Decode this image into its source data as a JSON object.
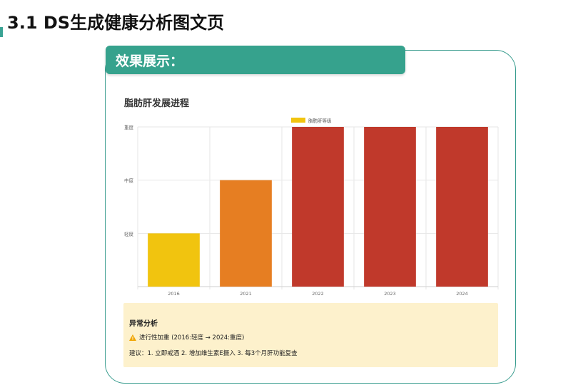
{
  "page": {
    "title": "3.1 DS生成健康分析图文页"
  },
  "section": {
    "label": "效果展示："
  },
  "colors": {
    "accent": "#36a28d",
    "mild": "#f1c40f",
    "moderate": "#e67e22",
    "severe": "#c0392b",
    "analysis_bg": "#fdf1cc"
  },
  "chart_data": {
    "type": "bar",
    "title": "脂肪肝发展进程",
    "categories": [
      "2016",
      "2021",
      "2022",
      "2023",
      "2024"
    ],
    "y_levels": [
      "轻度",
      "中度",
      "重度"
    ],
    "series": [
      {
        "name": "脂肪肝等级",
        "values": [
          1,
          2,
          3,
          3,
          3
        ],
        "colors": [
          "#f1c40f",
          "#e67e22",
          "#c0392b",
          "#c0392b",
          "#c0392b"
        ]
      }
    ],
    "legend_position": "top",
    "legend_swatch_color": "#f1c40f",
    "grid": true,
    "ylim": [
      0,
      3
    ]
  },
  "analysis": {
    "title": "异常分析",
    "warning_icon": "warning-icon",
    "warning_text": "进行性加重 (2016:轻度 → 2024:重度)",
    "advice": "建议：1. 立即戒酒 2. 增加维生素E摄入 3. 每3个月肝功能复查"
  }
}
